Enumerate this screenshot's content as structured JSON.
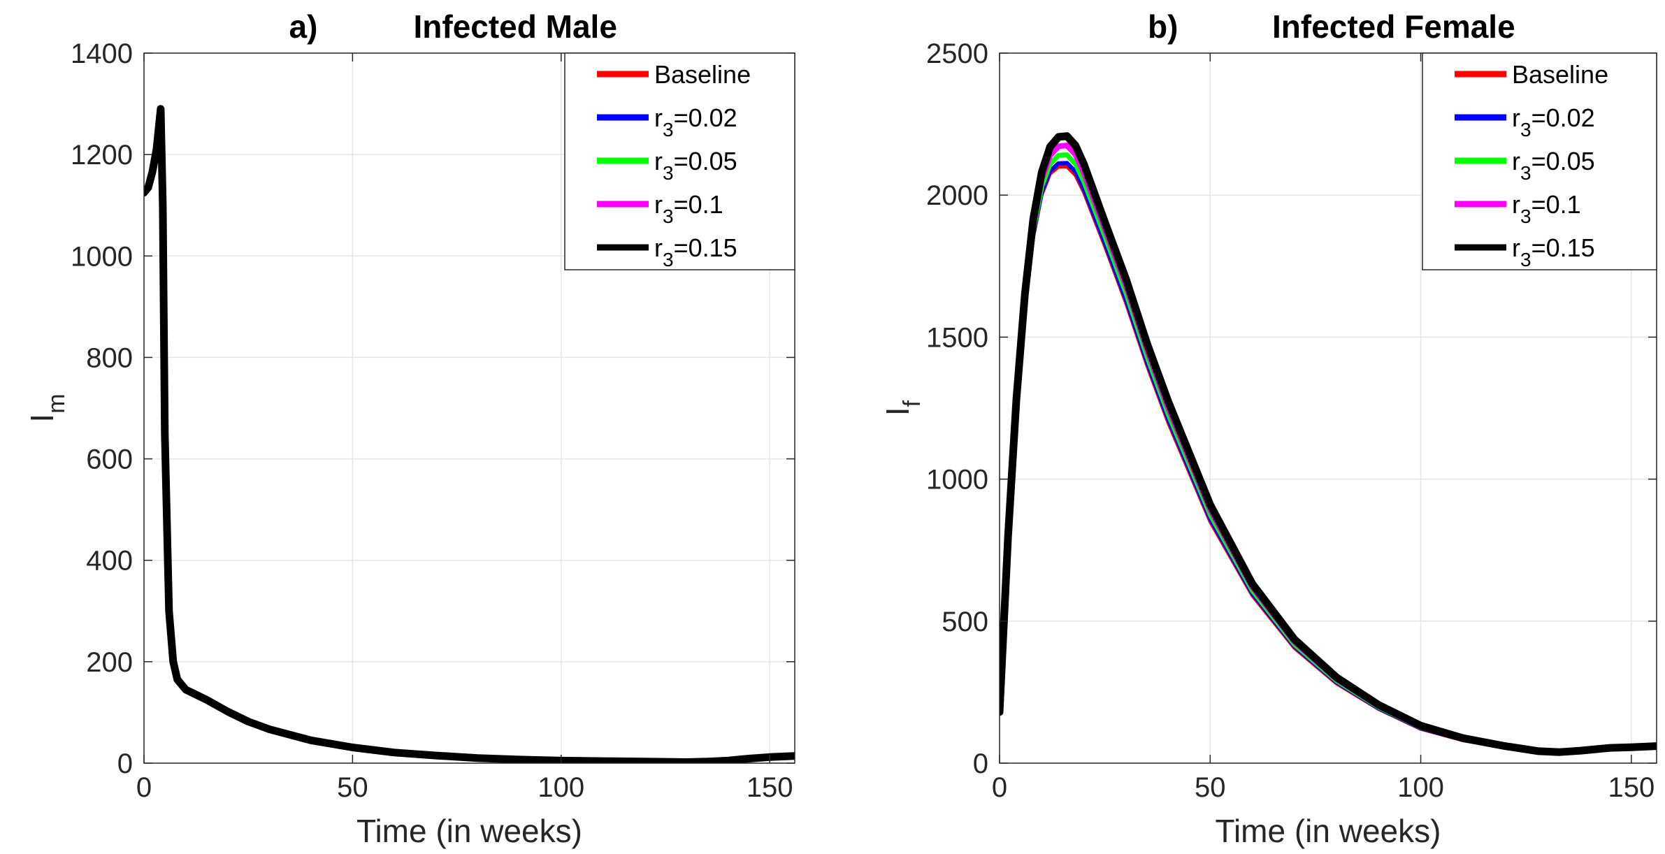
{
  "chart_data": [
    {
      "type": "line",
      "panel_label": "a)",
      "title": "Infected Male",
      "xlabel": "Time (in weeks)",
      "ylabel_main": "I",
      "ylabel_sub": "m",
      "xlim": [
        0,
        156
      ],
      "ylim": [
        0,
        1400
      ],
      "xticks": [
        0,
        50,
        100,
        150
      ],
      "yticks": [
        0,
        200,
        400,
        600,
        800,
        1000,
        1200,
        1400
      ],
      "grid": true,
      "legend_position": "top-right",
      "x": [
        0,
        1,
        2,
        3,
        4,
        4.5,
        5,
        6,
        7,
        8,
        10,
        12,
        15,
        20,
        25,
        30,
        40,
        50,
        60,
        70,
        80,
        90,
        100,
        110,
        120,
        130,
        135,
        140,
        145,
        150,
        156
      ],
      "series": [
        {
          "name": "Baseline",
          "label_main": "Baseline",
          "label_sub": "",
          "label_rest": "",
          "color": "#ff0000",
          "values": [
            1125,
            1135,
            1165,
            1210,
            1290,
            1100,
            650,
            300,
            200,
            165,
            145,
            137,
            125,
            102,
            82,
            67,
            45,
            31,
            21,
            15,
            10,
            7,
            5,
            4,
            3,
            2,
            3,
            5,
            9,
            12,
            14
          ]
        },
        {
          "name": "r3=0.02",
          "label_main": "r",
          "label_sub": "3",
          "label_rest": "=0.02",
          "color": "#0000ff",
          "values": [
            1125,
            1135,
            1165,
            1210,
            1290,
            1100,
            650,
            300,
            200,
            165,
            145,
            137,
            125,
            102,
            82,
            67,
            45,
            31,
            21,
            15,
            10,
            7,
            5,
            4,
            3,
            2,
            3,
            5,
            9,
            12,
            14
          ]
        },
        {
          "name": "r3=0.05",
          "label_main": "r",
          "label_sub": "3",
          "label_rest": "=0.05",
          "color": "#00ff00",
          "values": [
            1125,
            1135,
            1165,
            1210,
            1290,
            1100,
            650,
            300,
            200,
            165,
            145,
            137,
            125,
            102,
            82,
            67,
            45,
            31,
            21,
            15,
            10,
            7,
            5,
            4,
            3,
            2,
            3,
            5,
            9,
            12,
            14
          ]
        },
        {
          "name": "r3=0.1",
          "label_main": "r",
          "label_sub": "3",
          "label_rest": "=0.1",
          "color": "#ff00ff",
          "values": [
            1125,
            1135,
            1165,
            1210,
            1290,
            1100,
            650,
            300,
            200,
            165,
            145,
            137,
            125,
            102,
            82,
            67,
            45,
            31,
            21,
            15,
            10,
            7,
            5,
            4,
            3,
            2,
            3,
            5,
            9,
            12,
            14
          ]
        },
        {
          "name": "r3=0.15",
          "label_main": "r",
          "label_sub": "3",
          "label_rest": "=0.15",
          "color": "#000000",
          "values": [
            1125,
            1135,
            1165,
            1210,
            1290,
            1100,
            650,
            300,
            200,
            165,
            145,
            137,
            125,
            102,
            82,
            67,
            45,
            31,
            21,
            15,
            10,
            7,
            5,
            4,
            3,
            2,
            3,
            5,
            9,
            12,
            14
          ]
        }
      ]
    },
    {
      "type": "line",
      "panel_label": "b)",
      "title": "Infected Female",
      "xlabel": "Time (in weeks)",
      "ylabel_main": "I",
      "ylabel_sub": "f",
      "xlim": [
        0,
        156
      ],
      "ylim": [
        0,
        2500
      ],
      "xticks": [
        0,
        50,
        100,
        150
      ],
      "yticks": [
        0,
        500,
        1000,
        1500,
        2000,
        2500
      ],
      "grid": true,
      "legend_position": "top-right",
      "x": [
        0,
        2,
        4,
        6,
        8,
        10,
        12,
        14,
        16,
        18,
        20,
        25,
        30,
        35,
        40,
        50,
        60,
        70,
        80,
        90,
        100,
        110,
        120,
        128,
        133,
        138,
        145,
        150,
        156
      ],
      "series": [
        {
          "name": "Baseline",
          "label_main": "Baseline",
          "label_sub": "",
          "label_rest": "",
          "color": "#ff0000",
          "values": [
            180,
            780,
            1250,
            1600,
            1850,
            2000,
            2075,
            2100,
            2100,
            2070,
            2010,
            1820,
            1620,
            1400,
            1200,
            850,
            590,
            405,
            280,
            190,
            120,
            80,
            55,
            38,
            35,
            40,
            50,
            52,
            55
          ]
        },
        {
          "name": "r3=0.02",
          "label_main": "r",
          "label_sub": "3",
          "label_rest": "=0.02",
          "color": "#0000ff",
          "values": [
            180,
            782,
            1255,
            1608,
            1860,
            2010,
            2085,
            2112,
            2113,
            2083,
            2022,
            1832,
            1632,
            1412,
            1212,
            860,
            598,
            411,
            285,
            193,
            123,
            82,
            56,
            39,
            36,
            41,
            51,
            53,
            56
          ]
        },
        {
          "name": "r3=0.05",
          "label_main": "r",
          "label_sub": "3",
          "label_rest": "=0.05",
          "color": "#00ff00",
          "values": [
            180,
            785,
            1262,
            1620,
            1875,
            2030,
            2110,
            2140,
            2142,
            2110,
            2048,
            1855,
            1655,
            1432,
            1230,
            875,
            608,
            418,
            290,
            197,
            126,
            84,
            58,
            40,
            37,
            42,
            52,
            54,
            57
          ]
        },
        {
          "name": "r3=0.1",
          "label_main": "r",
          "label_sub": "3",
          "label_rest": "=0.1",
          "color": "#ff00ff",
          "values": [
            180,
            790,
            1272,
            1635,
            1895,
            2055,
            2140,
            2172,
            2175,
            2143,
            2078,
            1880,
            1680,
            1455,
            1252,
            892,
            620,
            427,
            296,
            201,
            129,
            86,
            59,
            41,
            38,
            43,
            53,
            55,
            58
          ]
        },
        {
          "name": "r3=0.15",
          "label_main": "r",
          "label_sub": "3",
          "label_rest": "=0.15",
          "color": "#000000",
          "values": [
            180,
            795,
            1282,
            1650,
            1915,
            2080,
            2170,
            2205,
            2208,
            2175,
            2110,
            1905,
            1705,
            1478,
            1275,
            910,
            632,
            436,
            302,
            205,
            132,
            88,
            60,
            42,
            39,
            44,
            54,
            56,
            60
          ]
        }
      ]
    }
  ]
}
